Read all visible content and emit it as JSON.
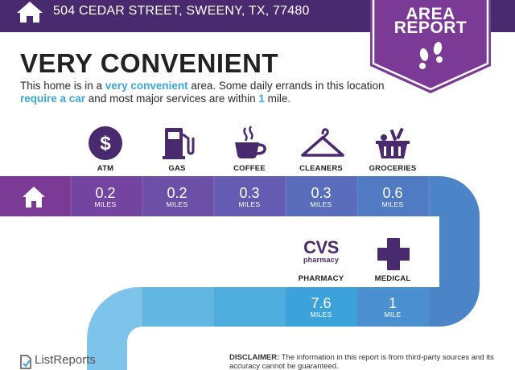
{
  "header": {
    "address": "504 CEDAR STREET, SWEENY, TX, 77480",
    "home_icon": "house-icon"
  },
  "badge": {
    "line1": "AREA",
    "line2": "REPORT",
    "icon": "footprints-icon"
  },
  "title": "VERY CONVENIENT",
  "description": {
    "part1": "This home is in a ",
    "highlight1": "very convenient",
    "part2": " area. Some daily errands in this location ",
    "highlight2": "require a car",
    "part3": " and most major services are within ",
    "highlight3": "1",
    "part4": " mile."
  },
  "amenities": [
    {
      "label": "ATM",
      "value": "0.2",
      "unit": "MILES",
      "icon": "dollar-icon"
    },
    {
      "label": "GAS",
      "value": "0.2",
      "unit": "MILES",
      "icon": "gas-pump-icon"
    },
    {
      "label": "COFFEE",
      "value": "0.3",
      "unit": "MILES",
      "icon": "coffee-cup-icon"
    },
    {
      "label": "CLEANERS",
      "value": "0.3",
      "unit": "MILES",
      "icon": "hanger-icon"
    },
    {
      "label": "GROCERIES",
      "value": "0.6",
      "unit": "MILES",
      "icon": "basket-icon"
    },
    {
      "label": "PHARMACY",
      "value": "7.6",
      "unit": "MILES",
      "logo_top": "CVS",
      "logo_bottom": "pharmacy",
      "icon": "cvs-logo"
    },
    {
      "label": "MEDICAL",
      "value": "1",
      "unit": "MILE",
      "icon": "medical-cross-icon"
    }
  ],
  "footer": {
    "brand": "ListReports",
    "brand_icon": "listreports-logo-icon",
    "disclaimer_label": "DISCLAIMER:",
    "disclaimer_text": " The information in this report is from third-party sources and its accuracy cannot be guaranteed."
  },
  "colors": {
    "header": "#4a2a6e",
    "badge": "#7b3a96",
    "road_purple": "#7b3a96",
    "road_blue": "#4a8acc",
    "road_light": "#82c6ea",
    "highlight": "#3aa8d8",
    "icon_dark": "#4a2a6e"
  }
}
